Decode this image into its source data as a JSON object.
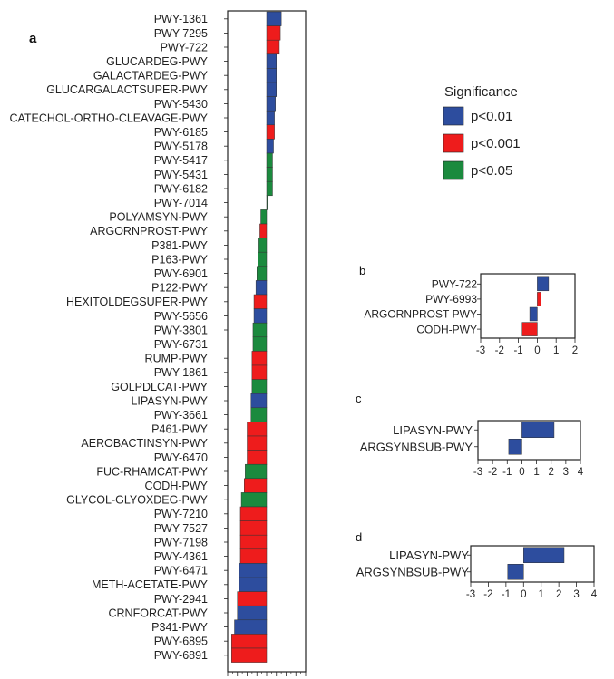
{
  "chart_data": [
    {
      "panel": "a",
      "type": "bar",
      "orientation": "horizontal",
      "categories": [
        "PWY-1361",
        "PWY-7295",
        "PWY-722",
        "GLUCARDEG-PWY",
        "GALACTARDEG-PWY",
        "GLUCARGALACTSUPER-PWY",
        "PWY-5430",
        "CATECHOL-ORTHO-CLEAVAGE-PWY",
        "PWY-6185",
        "PWY-5178",
        "PWY-5417",
        "PWY-5431",
        "PWY-6182",
        "PWY-7014",
        "POLYAMSYN-PWY",
        "ARGORNPROST-PWY",
        "P381-PWY",
        "P163-PWY",
        "PWY-6901",
        "P122-PWY",
        "HEXITOLDEGSUPER-PWY",
        "PWY-5656",
        "PWY-3801",
        "PWY-6731",
        "RUMP-PWY",
        "PWY-1861",
        "GOLPDLCAT-PWY",
        "LIPASYN-PWY",
        "PWY-3661",
        "P461-PWY",
        "AEROBACTINSYN-PWY",
        "PWY-6470",
        "FUC-RHAMCAT-PWY",
        "CODH-PWY",
        "GLYCOL-GLYOXDEG-PWY",
        "PWY-7210",
        "PWY-7527",
        "PWY-7198",
        "PWY-4361",
        "PWY-6471",
        "METH-ACETATE-PWY",
        "PWY-2941",
        "CRNFORCAT-PWY",
        "P341-PWY",
        "PWY-6895",
        "PWY-6891"
      ],
      "values": [
        1.5,
        1.4,
        1.3,
        1.0,
        1.0,
        1.0,
        0.9,
        0.8,
        0.8,
        0.7,
        0.6,
        0.6,
        0.6,
        0.05,
        -0.6,
        -0.7,
        -0.8,
        -0.9,
        -1.0,
        -1.1,
        -1.3,
        -1.3,
        -1.4,
        -1.4,
        -1.5,
        -1.5,
        -1.5,
        -1.6,
        -1.6,
        -2.0,
        -2.0,
        -2.0,
        -2.2,
        -2.3,
        -2.6,
        -2.7,
        -2.7,
        -2.7,
        -2.7,
        -2.8,
        -2.8,
        -3.0,
        -3.0,
        -3.3,
        -3.6,
        -3.6
      ],
      "significance": [
        "p<0.01",
        "p<0.001",
        "p<0.001",
        "p<0.01",
        "p<0.01",
        "p<0.01",
        "p<0.01",
        "p<0.01",
        "p<0.001",
        "p<0.01",
        "p<0.05",
        "p<0.05",
        "p<0.05",
        "p<0.05",
        "p<0.05",
        "p<0.001",
        "p<0.05",
        "p<0.05",
        "p<0.05",
        "p<0.01",
        "p<0.001",
        "p<0.01",
        "p<0.05",
        "p<0.05",
        "p<0.001",
        "p<0.001",
        "p<0.05",
        "p<0.01",
        "p<0.05",
        "p<0.001",
        "p<0.001",
        "p<0.001",
        "p<0.05",
        "p<0.001",
        "p<0.05",
        "p<0.001",
        "p<0.001",
        "p<0.001",
        "p<0.001",
        "p<0.01",
        "p<0.01",
        "p<0.001",
        "p<0.01",
        "p<0.01",
        "p<0.001",
        "p<0.001"
      ],
      "xlim": [
        -4,
        4
      ]
    },
    {
      "panel": "b",
      "type": "bar",
      "orientation": "horizontal",
      "categories": [
        "PWY-722",
        "PWY-6993",
        "ARGORNPROST-PWY",
        "CODH-PWY"
      ],
      "values": [
        0.6,
        0.2,
        -0.4,
        -0.8
      ],
      "significance": [
        "p<0.01",
        "p<0.001",
        "p<0.01",
        "p<0.001"
      ],
      "xlim": [
        -3,
        2
      ],
      "xticks": [
        "-3",
        "-2",
        "-1",
        "0",
        "1",
        "2"
      ]
    },
    {
      "panel": "c",
      "type": "bar",
      "orientation": "horizontal",
      "categories": [
        "LIPASYN-PWY",
        "ARGSYNBSUB-PWY"
      ],
      "values": [
        2.2,
        -0.9
      ],
      "significance": [
        "p<0.01",
        "p<0.01"
      ],
      "xlim": [
        -3,
        4
      ],
      "xticks": [
        "-3",
        "-2",
        "-1",
        "0",
        "1",
        "2",
        "3",
        "4"
      ]
    },
    {
      "panel": "d",
      "type": "bar",
      "orientation": "horizontal",
      "categories": [
        "LIPASYN-PWY",
        "ARGSYNBSUB-PWY"
      ],
      "values": [
        2.3,
        -0.9
      ],
      "significance": [
        "p<0.01",
        "p<0.01"
      ],
      "xlim": [
        -3,
        4
      ],
      "xticks": [
        "-3",
        "-2",
        "-1",
        "0",
        "1",
        "2",
        "3",
        "4"
      ]
    }
  ],
  "legend": {
    "title": "Significance",
    "items": [
      {
        "label": "p<0.01",
        "color": "#2d4d9e"
      },
      {
        "label": "p<0.001",
        "color": "#ee1c1c"
      },
      {
        "label": "p<0.05",
        "color": "#1b8a3e"
      }
    ]
  },
  "panel_labels": {
    "a": "a",
    "b": "b",
    "c": "c",
    "d": "d"
  }
}
